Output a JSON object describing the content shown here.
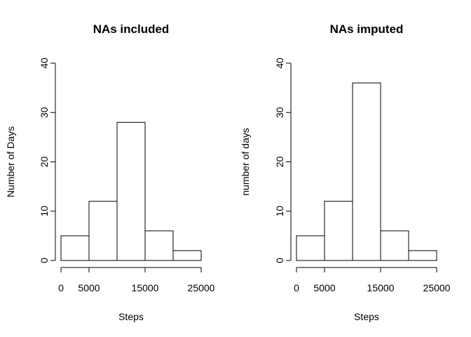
{
  "chart_data": [
    {
      "type": "bar",
      "title": "NAs included",
      "xlabel": "Steps",
      "ylabel": "Number of Days",
      "bin_edges": [
        0,
        5000,
        10000,
        15000,
        20000,
        25000
      ],
      "values": [
        5,
        12,
        28,
        6,
        2
      ],
      "xticks": [
        0,
        5000,
        15000,
        25000
      ],
      "xtick_labels": [
        "0",
        "5000",
        "15000",
        "25000"
      ],
      "yticks": [
        0,
        10,
        20,
        30,
        40
      ],
      "yticks_labels": [
        "0",
        "10",
        "20",
        "30",
        "40"
      ],
      "xlim": [
        0,
        25000
      ],
      "ylim": [
        0,
        40
      ],
      "grid": false,
      "legend": "none"
    },
    {
      "type": "bar",
      "title": "NAs imputed",
      "xlabel": "Steps",
      "ylabel": "number of days",
      "bin_edges": [
        0,
        5000,
        10000,
        15000,
        20000,
        25000
      ],
      "values": [
        5,
        12,
        36,
        6,
        2
      ],
      "xticks": [
        0,
        5000,
        15000,
        25000
      ],
      "xtick_labels": [
        "0",
        "5000",
        "15000",
        "25000"
      ],
      "yticks": [
        0,
        10,
        20,
        30,
        40
      ],
      "yticks_labels": [
        "0",
        "10",
        "20",
        "30",
        "40"
      ],
      "xlim": [
        0,
        25000
      ],
      "ylim": [
        0,
        40
      ],
      "grid": false,
      "legend": "none"
    }
  ]
}
